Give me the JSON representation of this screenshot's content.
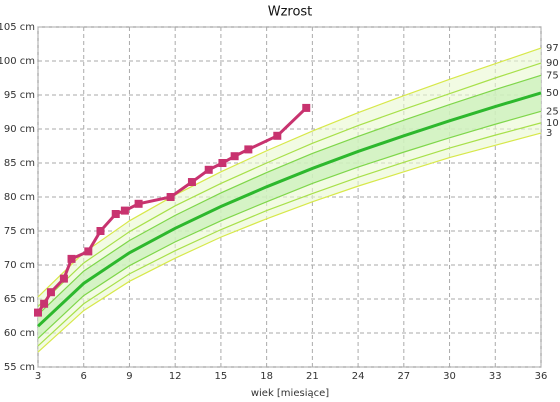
{
  "chart_data": {
    "type": "line",
    "title": "Wzrost",
    "x_label": "wiek [miesiące]",
    "xlim": [
      3,
      36
    ],
    "xticks": [
      3,
      6,
      9,
      12,
      15,
      18,
      21,
      24,
      27,
      30,
      33,
      36
    ],
    "ylim": [
      55,
      105
    ],
    "yticks": [
      {
        "value": 55,
        "label": "55 cm"
      },
      {
        "value": 60,
        "label": "60 cm"
      },
      {
        "value": 65,
        "label": "65 cm"
      },
      {
        "value": 70,
        "label": "70 cm"
      },
      {
        "value": 75,
        "label": "75 cm"
      },
      {
        "value": 80,
        "label": "80 cm"
      },
      {
        "value": 85,
        "label": "85 cm"
      },
      {
        "value": 90,
        "label": "90 cm"
      },
      {
        "value": 95,
        "label": "95 cm"
      },
      {
        "value": 100,
        "label": "100 cm"
      },
      {
        "value": 105,
        "label": "105 cm"
      }
    ],
    "grid": true,
    "series": [
      {
        "name": "3",
        "color": "#d7e84a",
        "x": [
          3,
          6,
          9,
          12,
          15,
          18,
          21,
          24,
          27,
          30,
          33,
          36
        ],
        "values": [
          57.2,
          63.3,
          67.6,
          71.0,
          74.1,
          76.8,
          79.3,
          81.6,
          83.7,
          85.8,
          87.6,
          89.4
        ]
      },
      {
        "name": "10",
        "color": "#a8e04a",
        "x": [
          3,
          6,
          9,
          12,
          15,
          18,
          21,
          24,
          27,
          30,
          33,
          36
        ],
        "values": [
          58.1,
          64.3,
          68.7,
          72.1,
          75.2,
          78.0,
          80.5,
          82.9,
          85.1,
          87.2,
          89.1,
          90.9
        ]
      },
      {
        "name": "25",
        "color": "#7fd64a",
        "x": [
          3,
          6,
          9,
          12,
          15,
          18,
          21,
          24,
          27,
          30,
          33,
          36
        ],
        "values": [
          59.2,
          65.5,
          69.9,
          73.4,
          76.5,
          79.3,
          82.0,
          84.4,
          86.6,
          88.7,
          90.7,
          92.6
        ]
      },
      {
        "name": "50",
        "color": "#2db82d",
        "x": [
          3,
          6,
          9,
          12,
          15,
          18,
          21,
          24,
          27,
          30,
          33,
          36
        ],
        "values": [
          61.0,
          67.3,
          71.8,
          75.4,
          78.6,
          81.5,
          84.2,
          86.7,
          89.0,
          91.2,
          93.3,
          95.3
        ]
      },
      {
        "name": "75",
        "color": "#7fd64a",
        "x": [
          3,
          6,
          9,
          12,
          15,
          18,
          21,
          24,
          27,
          30,
          33,
          36
        ],
        "values": [
          62.7,
          69.1,
          73.6,
          77.3,
          80.6,
          83.6,
          86.4,
          88.9,
          91.3,
          93.6,
          95.8,
          97.9
        ]
      },
      {
        "name": "90",
        "color": "#a8e04a",
        "x": [
          3,
          6,
          9,
          12,
          15,
          18,
          21,
          24,
          27,
          30,
          33,
          36
        ],
        "values": [
          63.9,
          70.3,
          74.9,
          78.7,
          82.0,
          85.0,
          87.9,
          90.5,
          92.9,
          95.2,
          97.5,
          99.7
        ]
      },
      {
        "name": "97",
        "color": "#d7e84a",
        "x": [
          3,
          6,
          9,
          12,
          15,
          18,
          21,
          24,
          27,
          30,
          33,
          36
        ],
        "values": [
          65.3,
          71.8,
          76.5,
          80.3,
          83.7,
          86.8,
          89.7,
          92.4,
          94.9,
          97.3,
          99.6,
          101.9
        ]
      },
      {
        "color": "#c8336f",
        "x": [
          3,
          3.4,
          3.85,
          4.7,
          5.2,
          6.3,
          7.1,
          8.1,
          8.7,
          9.6,
          11.7,
          13.1,
          14.2,
          15.1,
          15.9,
          16.8,
          18.7,
          20.6
        ],
        "values": [
          63,
          64.3,
          66,
          68,
          70.9,
          72,
          75,
          77.5,
          78,
          79,
          80,
          82.2,
          84,
          85,
          86,
          87,
          89,
          93.1
        ]
      }
    ]
  }
}
